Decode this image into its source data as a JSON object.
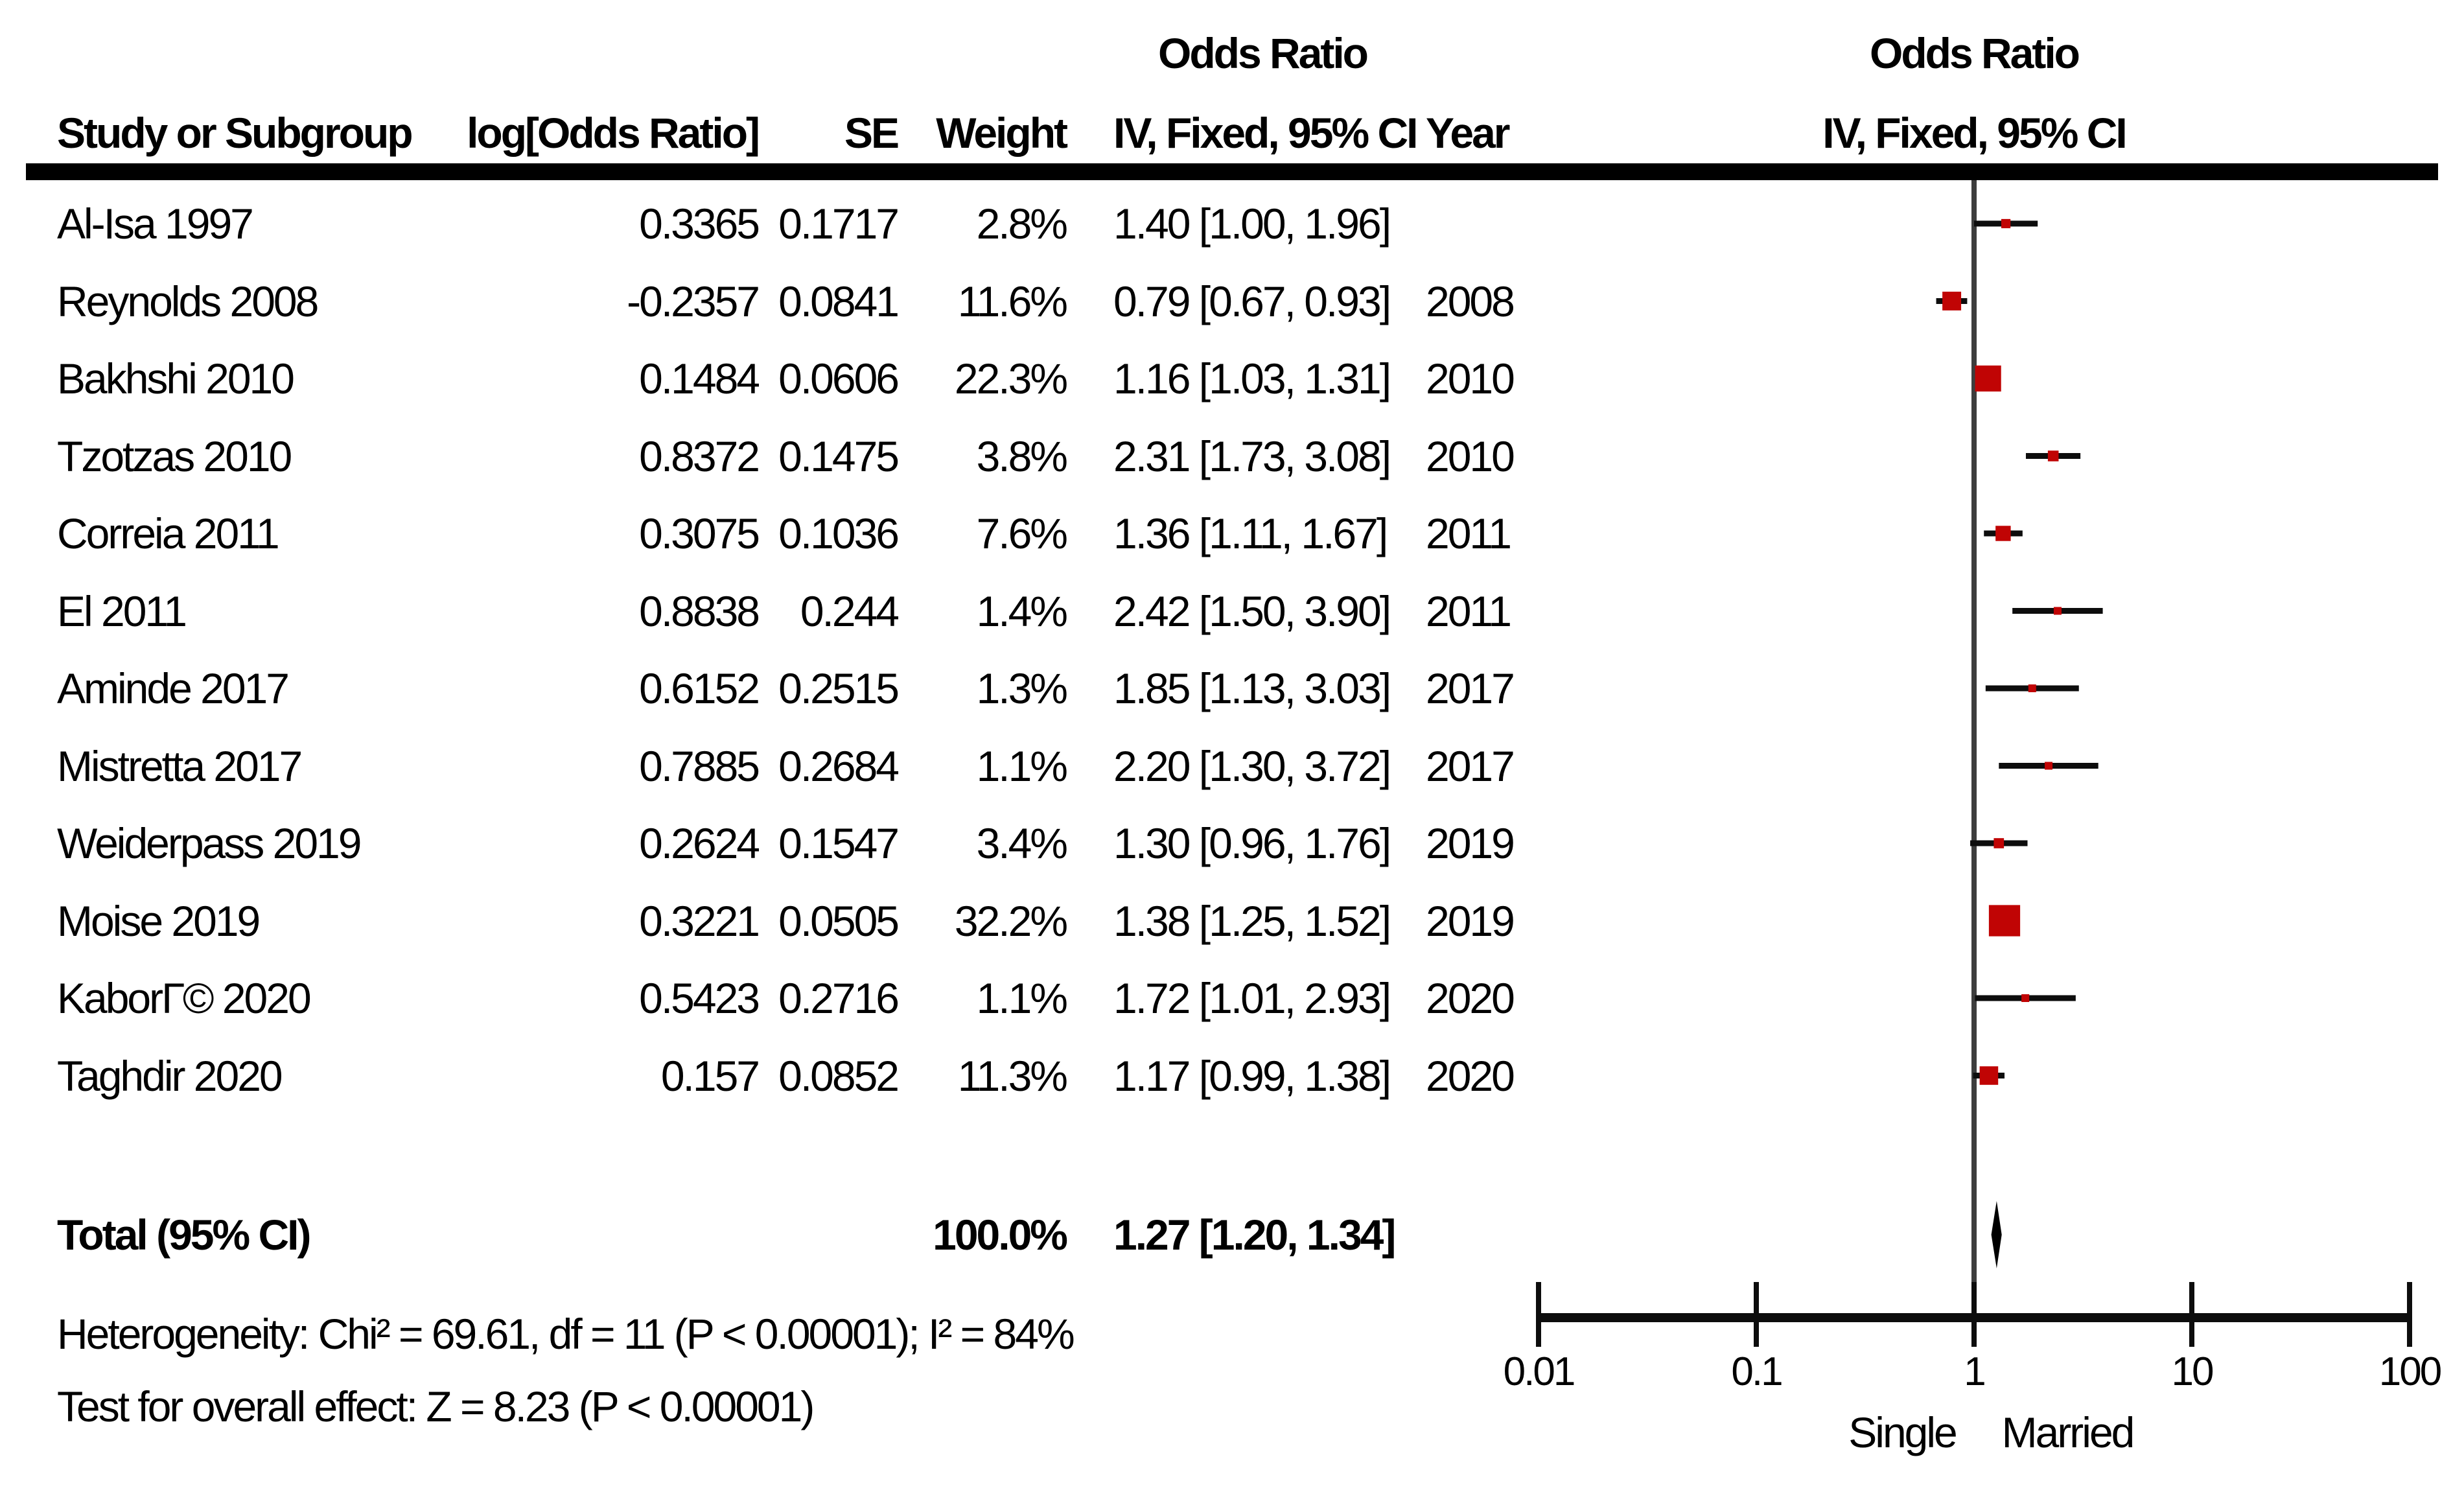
{
  "header": {
    "or_title_left": "Odds Ratio",
    "or_title_right": "Odds Ratio",
    "col_study": "Study or Subgroup",
    "col_log_or": "log[Odds Ratio]",
    "col_se": "SE",
    "col_weight": "Weight",
    "col_ci": "IV, Fixed, 95% CI",
    "col_year": "Year",
    "col_ci_right": "IV, Fixed, 95% CI"
  },
  "studies": [
    {
      "name": "Al-Isa 1997",
      "log_or": "0.3365",
      "se": "0.1717",
      "weight": "2.8%",
      "ci": "1.40 [1.00, 1.96]",
      "year": "",
      "or": 1.4,
      "lo": 1.0,
      "hi": 1.96,
      "w": 2.8
    },
    {
      "name": "Reynolds 2008",
      "log_or": "-0.2357",
      "se": "0.0841",
      "weight": "11.6%",
      "ci": "0.79 [0.67, 0.93]",
      "year": "2008",
      "or": 0.79,
      "lo": 0.67,
      "hi": 0.93,
      "w": 11.6
    },
    {
      "name": "Bakhshi 2010",
      "log_or": "0.1484",
      "se": "0.0606",
      "weight": "22.3%",
      "ci": "1.16 [1.03, 1.31]",
      "year": "2010",
      "or": 1.16,
      "lo": 1.03,
      "hi": 1.31,
      "w": 22.3
    },
    {
      "name": "Tzotzas 2010",
      "log_or": "0.8372",
      "se": "0.1475",
      "weight": "3.8%",
      "ci": "2.31 [1.73, 3.08]",
      "year": "2010",
      "or": 2.31,
      "lo": 1.73,
      "hi": 3.08,
      "w": 3.8
    },
    {
      "name": "Correia 2011",
      "log_or": "0.3075",
      "se": "0.1036",
      "weight": "7.6%",
      "ci": "1.36 [1.11, 1.67]",
      "year": "2011",
      "or": 1.36,
      "lo": 1.11,
      "hi": 1.67,
      "w": 7.6
    },
    {
      "name": "El 2011",
      "log_or": "0.8838",
      "se": "0.244",
      "weight": "1.4%",
      "ci": "2.42 [1.50, 3.90]",
      "year": "2011",
      "or": 2.42,
      "lo": 1.5,
      "hi": 3.9,
      "w": 1.4
    },
    {
      "name": "Aminde 2017",
      "log_or": "0.6152",
      "se": "0.2515",
      "weight": "1.3%",
      "ci": "1.85 [1.13, 3.03]",
      "year": "2017",
      "or": 1.85,
      "lo": 1.13,
      "hi": 3.03,
      "w": 1.3
    },
    {
      "name": "Mistretta 2017",
      "log_or": "0.7885",
      "se": "0.2684",
      "weight": "1.1%",
      "ci": "2.20 [1.30, 3.72]",
      "year": "2017",
      "or": 2.2,
      "lo": 1.3,
      "hi": 3.72,
      "w": 1.1
    },
    {
      "name": "Weiderpass 2019",
      "log_or": "0.2624",
      "se": "0.1547",
      "weight": "3.4%",
      "ci": "1.30 [0.96, 1.76]",
      "year": "2019",
      "or": 1.3,
      "lo": 0.96,
      "hi": 1.76,
      "w": 3.4
    },
    {
      "name": "Moise 2019",
      "log_or": "0.3221",
      "se": "0.0505",
      "weight": "32.2%",
      "ci": "1.38 [1.25, 1.52]",
      "year": "2019",
      "or": 1.38,
      "lo": 1.25,
      "hi": 1.52,
      "w": 32.2
    },
    {
      "name": "KaborГ© 2020",
      "log_or": "0.5423",
      "se": "0.2716",
      "weight": "1.1%",
      "ci": "1.72 [1.01, 2.93]",
      "year": "2020",
      "or": 1.72,
      "lo": 1.01,
      "hi": 2.93,
      "w": 1.1
    },
    {
      "name": "Taghdir 2020",
      "log_or": "0.157",
      "se": "0.0852",
      "weight": "11.3%",
      "ci": "1.17 [0.99, 1.38]",
      "year": "2020",
      "or": 1.17,
      "lo": 0.99,
      "hi": 1.38,
      "w": 11.3
    }
  ],
  "total": {
    "label": "Total (95% CI)",
    "weight": "100.0%",
    "ci": "1.27 [1.20, 1.34]",
    "or": 1.27,
    "lo": 1.2,
    "hi": 1.34
  },
  "footer": {
    "heterogeneity": "Heterogeneity: Chi² = 69.61, df = 11 (P < 0.00001); I² = 84%",
    "overall_effect": "Test for overall effect: Z = 8.23 (P < 0.00001)"
  },
  "plot": {
    "axis": {
      "scale": "log10",
      "min": 0.01,
      "max": 100,
      "ticks": [
        0.01,
        0.1,
        1,
        10,
        100
      ],
      "tick_labels": [
        "0.01",
        "0.1",
        "1",
        "10",
        "100"
      ]
    },
    "group_left": "Single",
    "group_right": "Married",
    "marker_color": "#c00404",
    "line_color": "#0d0d0d",
    "axis_color": "#0d0d0d",
    "centerline_color": "#3d3d3d",
    "diamond_color": "#000000"
  },
  "chart_data": {
    "type": "scatter",
    "subtype": "forest-plot",
    "title": "Odds Ratio, IV, Fixed, 95% CI",
    "xlabel_groups": [
      "Single",
      "Married"
    ],
    "x_scale": "log10",
    "xlim": [
      0.01,
      100
    ],
    "x_ticks": [
      0.01,
      0.1,
      1,
      10,
      100
    ],
    "series": [
      {
        "name": "Al-Isa 1997",
        "or": 1.4,
        "ci": [
          1.0,
          1.96
        ],
        "weight_pct": 2.8,
        "log_or": 0.3365,
        "se": 0.1717,
        "year": null
      },
      {
        "name": "Reynolds 2008",
        "or": 0.79,
        "ci": [
          0.67,
          0.93
        ],
        "weight_pct": 11.6,
        "log_or": -0.2357,
        "se": 0.0841,
        "year": 2008
      },
      {
        "name": "Bakhshi 2010",
        "or": 1.16,
        "ci": [
          1.03,
          1.31
        ],
        "weight_pct": 22.3,
        "log_or": 0.1484,
        "se": 0.0606,
        "year": 2010
      },
      {
        "name": "Tzotzas 2010",
        "or": 2.31,
        "ci": [
          1.73,
          3.08
        ],
        "weight_pct": 3.8,
        "log_or": 0.8372,
        "se": 0.1475,
        "year": 2010
      },
      {
        "name": "Correia 2011",
        "or": 1.36,
        "ci": [
          1.11,
          1.67
        ],
        "weight_pct": 7.6,
        "log_or": 0.3075,
        "se": 0.1036,
        "year": 2011
      },
      {
        "name": "El 2011",
        "or": 2.42,
        "ci": [
          1.5,
          3.9
        ],
        "weight_pct": 1.4,
        "log_or": 0.8838,
        "se": 0.244,
        "year": 2011
      },
      {
        "name": "Aminde 2017",
        "or": 1.85,
        "ci": [
          1.13,
          3.03
        ],
        "weight_pct": 1.3,
        "log_or": 0.6152,
        "se": 0.2515,
        "year": 2017
      },
      {
        "name": "Mistretta 2017",
        "or": 2.2,
        "ci": [
          1.3,
          3.72
        ],
        "weight_pct": 1.1,
        "log_or": 0.7885,
        "se": 0.2684,
        "year": 2017
      },
      {
        "name": "Weiderpass 2019",
        "or": 1.3,
        "ci": [
          0.96,
          1.76
        ],
        "weight_pct": 3.4,
        "log_or": 0.2624,
        "se": 0.1547,
        "year": 2019
      },
      {
        "name": "Moise 2019",
        "or": 1.38,
        "ci": [
          1.25,
          1.52
        ],
        "weight_pct": 32.2,
        "log_or": 0.3221,
        "se": 0.0505,
        "year": 2019
      },
      {
        "name": "KaborГ© 2020",
        "or": 1.72,
        "ci": [
          1.01,
          2.93
        ],
        "weight_pct": 1.1,
        "log_or": 0.5423,
        "se": 0.2716,
        "year": 2020
      },
      {
        "name": "Taghdir 2020",
        "or": 1.17,
        "ci": [
          0.99,
          1.38
        ],
        "weight_pct": 11.3,
        "log_or": 0.157,
        "se": 0.0852,
        "year": 2020
      }
    ],
    "total": {
      "or": 1.27,
      "ci": [
        1.2,
        1.34
      ],
      "weight_pct": 100.0
    },
    "heterogeneity": {
      "chi2": 69.61,
      "df": 11,
      "p": "< 0.00001",
      "i2_pct": 84
    },
    "overall_effect": {
      "z": 8.23,
      "p": "< 0.00001"
    },
    "model": "IV, Fixed"
  }
}
